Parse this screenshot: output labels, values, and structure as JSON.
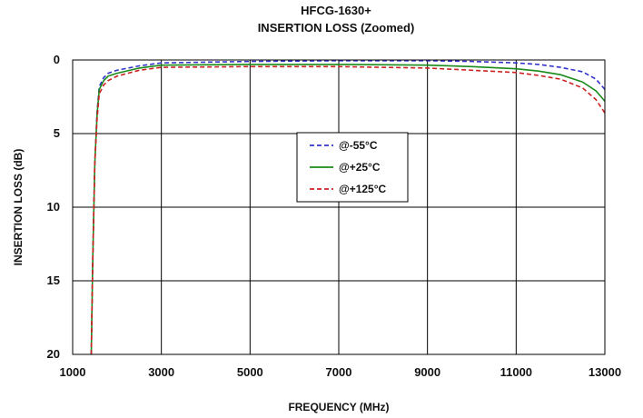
{
  "chart_data": {
    "type": "line",
    "title": "HFCG-1630+",
    "subtitle": "INSERTION LOSS (Zoomed)",
    "xlabel": "FREQUENCY (MHz)",
    "ylabel": "INSERTION LOSS (dB)",
    "xlim": [
      1000,
      13000
    ],
    "ylim": [
      0,
      20
    ],
    "y_inverted": true,
    "grid": true,
    "legend_position": "center",
    "x_ticks": [
      "1000",
      "3000",
      "5000",
      "7000",
      "9000",
      "11000",
      "13000"
    ],
    "y_ticks": [
      "0",
      "5",
      "10",
      "15",
      "20"
    ],
    "series": [
      {
        "name": "@-55°C",
        "color": "#3333cc",
        "dash": "dashed",
        "x": [
          1420,
          1450,
          1500,
          1550,
          1600,
          1700,
          1800,
          2000,
          2500,
          3000,
          5000,
          7000,
          9000,
          10000,
          11000,
          11500,
          12000,
          12500,
          12800,
          13000
        ],
        "y": [
          20,
          14,
          7,
          3.5,
          1.8,
          1.2,
          0.9,
          0.7,
          0.4,
          0.2,
          0.1,
          0.05,
          0.05,
          0.1,
          0.2,
          0.3,
          0.5,
          0.8,
          1.3,
          2.0
        ]
      },
      {
        "name": "@+25°C",
        "color": "#1a8a1a",
        "dash": "solid",
        "x": [
          1420,
          1450,
          1500,
          1550,
          1600,
          1700,
          1800,
          2000,
          2500,
          3000,
          5000,
          7000,
          9000,
          10000,
          11000,
          11500,
          12000,
          12500,
          12800,
          13000
        ],
        "y": [
          20,
          14,
          7,
          3.7,
          2.0,
          1.4,
          1.1,
          0.9,
          0.55,
          0.35,
          0.3,
          0.3,
          0.35,
          0.45,
          0.6,
          0.75,
          1.0,
          1.5,
          2.1,
          2.8
        ]
      },
      {
        "name": "@+125°C",
        "color": "#cc2222",
        "dash": "dashed",
        "x": [
          1420,
          1450,
          1500,
          1550,
          1600,
          1700,
          1800,
          2000,
          2500,
          3000,
          5000,
          7000,
          9000,
          10000,
          11000,
          11500,
          12000,
          12500,
          12800,
          13000
        ],
        "y": [
          20,
          14,
          7,
          4.0,
          2.3,
          1.7,
          1.4,
          1.1,
          0.7,
          0.5,
          0.45,
          0.45,
          0.55,
          0.7,
          0.85,
          1.05,
          1.3,
          1.9,
          2.7,
          3.6
        ]
      }
    ]
  }
}
